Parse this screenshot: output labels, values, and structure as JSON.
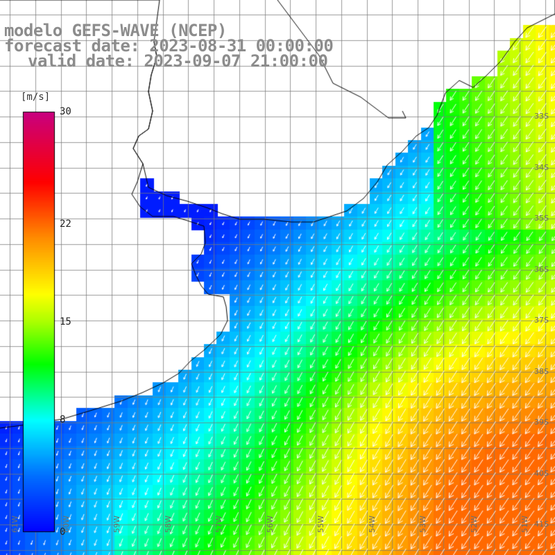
{
  "header": {
    "line1": "modelo GEFS-WAVE (NCEP)",
    "line2": "forecast date: 2023-08-31 00:00:00",
    "line3": "valid date: 2023-09-07 21:00:00"
  },
  "colorbar": {
    "unit": "[m/s]",
    "min": 0,
    "max": 30,
    "ticks": [
      {
        "label": "30",
        "value": 30
      },
      {
        "label": "22",
        "value": 22
      },
      {
        "label": "15",
        "value": 15
      },
      {
        "label": "8",
        "value": 8
      },
      {
        "label": "0",
        "value": 0
      }
    ],
    "colors": [
      "#0000ff",
      "#00a0ff",
      "#00ffff",
      "#00ff00",
      "#ffff00",
      "#ff8000",
      "#ff0000",
      "#c80080"
    ]
  },
  "axes": {
    "lat_labels": [
      {
        "label": "33S",
        "lat": -33
      },
      {
        "label": "34S",
        "lat": -34
      },
      {
        "label": "35S",
        "lat": -35
      },
      {
        "label": "36S",
        "lat": -36
      },
      {
        "label": "37S",
        "lat": -37
      },
      {
        "label": "38S",
        "lat": -38
      },
      {
        "label": "39S",
        "lat": -39
      },
      {
        "label": "40S",
        "lat": -40
      },
      {
        "label": "41S",
        "lat": -41
      }
    ],
    "lon_labels": [
      {
        "label": "61W",
        "lon": -61
      },
      {
        "label": "60W",
        "lon": -60
      },
      {
        "label": "59W",
        "lon": -59
      },
      {
        "label": "58W",
        "lon": -58
      },
      {
        "label": "57W",
        "lon": -57
      },
      {
        "label": "56W",
        "lon": -56
      },
      {
        "label": "55W",
        "lon": -55
      },
      {
        "label": "54W",
        "lon": -54
      },
      {
        "label": "53W",
        "lon": -53
      },
      {
        "label": "52W",
        "lon": -52
      },
      {
        "label": "51W",
        "lon": -51
      }
    ]
  }
}
